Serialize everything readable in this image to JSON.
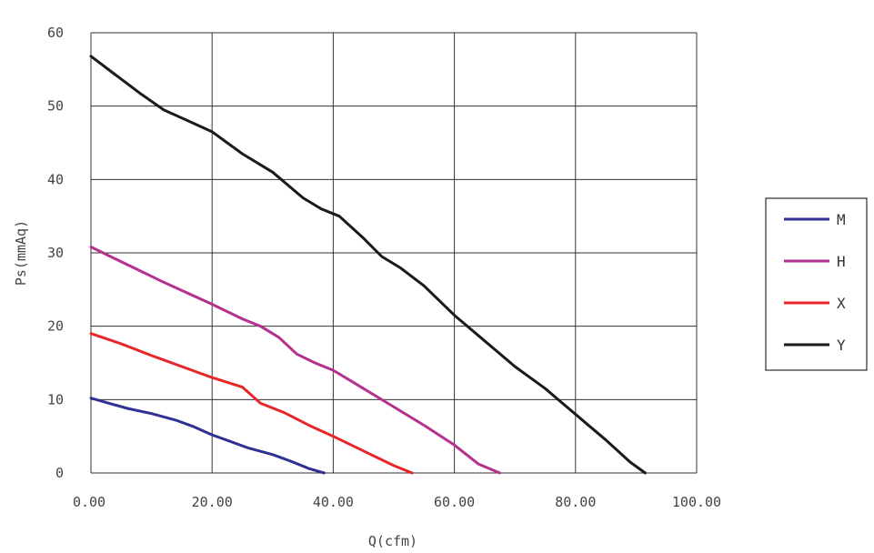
{
  "chart_data": {
    "type": "line",
    "xlabel": "Q(cfm)",
    "ylabel": "Ps(mmAq)",
    "xlim": [
      0,
      100
    ],
    "ylim": [
      0,
      60
    ],
    "x_ticks": [
      0,
      20,
      40,
      60,
      80,
      100
    ],
    "x_tick_labels": [
      "0.00",
      "20.00",
      "40.00",
      "60.00",
      "80.00",
      "100.00"
    ],
    "y_ticks": [
      0,
      10,
      20,
      30,
      40,
      50,
      60
    ],
    "y_tick_labels": [
      "0",
      "10",
      "20",
      "30",
      "40",
      "50",
      "60"
    ],
    "grid": true,
    "legend_position": "right",
    "series": [
      {
        "name": "M",
        "color": "#2e3192",
        "x": [
          0,
          3,
          6,
          10,
          14,
          17,
          20,
          23,
          26,
          30,
          33,
          36,
          38.5
        ],
        "y": [
          10.2,
          9.5,
          8.8,
          8.1,
          7.2,
          6.3,
          5.2,
          4.3,
          3.4,
          2.5,
          1.6,
          0.6,
          0
        ]
      },
      {
        "name": "H",
        "color": "#b5318f",
        "x": [
          0,
          4,
          8,
          12,
          16,
          20,
          25,
          28,
          31,
          34,
          37,
          40,
          45,
          50,
          55,
          60,
          64,
          67.5
        ],
        "y": [
          30.8,
          29.2,
          27.6,
          26.0,
          24.5,
          23.0,
          21.0,
          20.0,
          18.5,
          16.2,
          15.0,
          14.0,
          11.5,
          9.0,
          6.5,
          3.8,
          1.2,
          0
        ]
      },
      {
        "name": "X",
        "color": "#e8262a",
        "x": [
          0,
          5,
          10,
          15,
          20,
          25,
          28,
          32,
          36,
          40,
          45,
          50,
          53
        ],
        "y": [
          19.0,
          17.6,
          16.0,
          14.5,
          13.0,
          11.7,
          9.5,
          8.2,
          6.5,
          5.0,
          3.0,
          1.0,
          0
        ]
      },
      {
        "name": "Y",
        "color": "#1a1a1a",
        "x": [
          0,
          4,
          8,
          12,
          16,
          20,
          25,
          30,
          35,
          38,
          41,
          45,
          48,
          51,
          55,
          60,
          65,
          70,
          75,
          80,
          85,
          89,
          91.5
        ],
        "y": [
          56.8,
          54.3,
          51.8,
          49.5,
          48.0,
          46.5,
          43.5,
          41.0,
          37.5,
          36.0,
          35.0,
          32.0,
          29.5,
          28.0,
          25.5,
          21.5,
          18.0,
          14.5,
          11.5,
          8.0,
          4.5,
          1.5,
          0
        ]
      }
    ]
  }
}
